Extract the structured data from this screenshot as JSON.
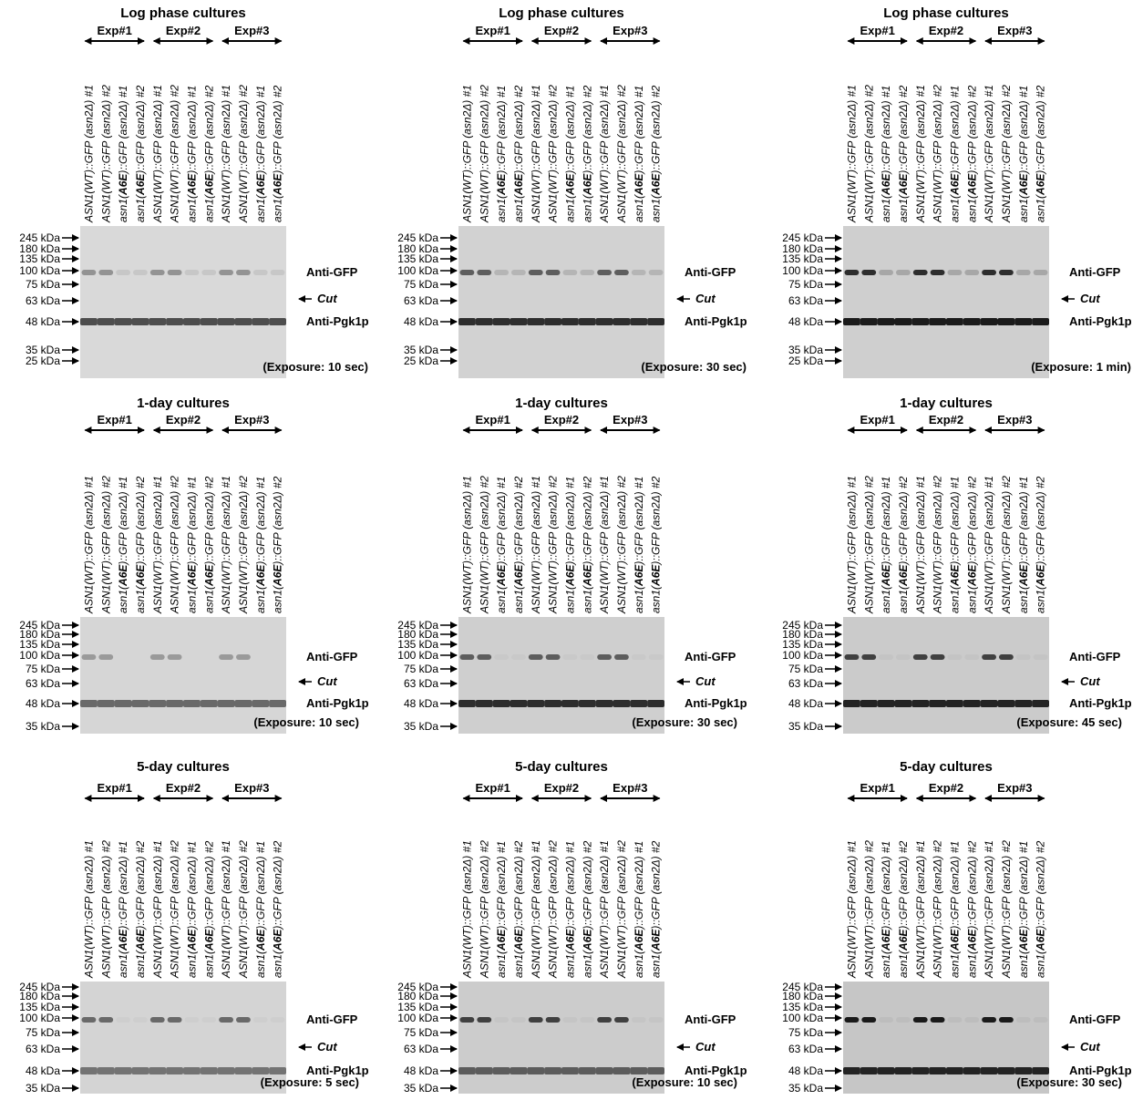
{
  "panels": [
    {
      "title": "Log phase cultures",
      "markers": [
        "245 kDa",
        "180 kDa",
        "135 kDa",
        "100 kDa",
        "75 kDa",
        "63 kDa",
        "48 kDa",
        "35 kDa",
        "25 kDa"
      ],
      "exposure": "(Exposure: 10 sec)"
    },
    {
      "title": "Log phase cultures",
      "markers": [
        "245 kDa",
        "180 kDa",
        "135 kDa",
        "100 kDa",
        "75 kDa",
        "63 kDa",
        "48 kDa",
        "35 kDa",
        "25 kDa"
      ],
      "exposure": "(Exposure: 30 sec)"
    },
    {
      "title": "Log phase cultures",
      "markers": [
        "245 kDa",
        "180 kDa",
        "135 kDa",
        "100 kDa",
        "75 kDa",
        "63 kDa",
        "48 kDa",
        "35 kDa",
        "25 kDa"
      ],
      "exposure": "(Exposure: 1 min)"
    },
    {
      "title": "1-day cultures",
      "markers": [
        "245 kDa",
        "180 kDa",
        "135 kDa",
        "100 kDa",
        "75 kDa",
        "63 kDa",
        "48 kDa",
        "35 kDa"
      ],
      "exposure": "(Exposure: 10 sec)"
    },
    {
      "title": "1-day cultures",
      "markers": [
        "245 kDa",
        "180 kDa",
        "135 kDa",
        "100 kDa",
        "75 kDa",
        "63 kDa",
        "48 kDa",
        "35 kDa"
      ],
      "exposure": "(Exposure: 30 sec)"
    },
    {
      "title": "1-day cultures",
      "markers": [
        "245 kDa",
        "180 kDa",
        "135 kDa",
        "100 kDa",
        "75 kDa",
        "63 kDa",
        "48 kDa",
        "35 kDa"
      ],
      "exposure": "(Exposure: 45 sec)"
    },
    {
      "title": "5-day cultures",
      "markers": [
        "245 kDa",
        "180 kDa",
        "135 kDa",
        "100 kDa",
        "75 kDa",
        "63 kDa",
        "48 kDa",
        "35 kDa"
      ],
      "exposure": "(Exposure: 5 sec)"
    },
    {
      "title": "5-day cultures",
      "markers": [
        "245 kDa",
        "180 kDa",
        "135 kDa",
        "100 kDa",
        "75 kDa",
        "63 kDa",
        "48 kDa",
        "35 kDa"
      ],
      "exposure": "(Exposure: 10 sec)"
    },
    {
      "title": "5-day cultures",
      "markers": [
        "245 kDa",
        "180 kDa",
        "135 kDa",
        "100 kDa",
        "75 kDa",
        "63 kDa",
        "48 kDa",
        "35 kDa"
      ],
      "exposure": "(Exposure: 30 sec)"
    }
  ],
  "experiments": [
    "Exp#1",
    "Exp#2",
    "Exp#3"
  ],
  "lanes": [
    "ASN1(WT)::GFP (asn2Δ) #1",
    "ASN1(WT)::GFP (asn2Δ) #2",
    "asn1(A6E)::GFP (asn2Δ) #1",
    "asn1(A6E)::GFP (asn2Δ) #2",
    "ASN1(WT)::GFP (asn2Δ) #1",
    "ASN1(WT)::GFP (asn2Δ) #2",
    "asn1(A6E)::GFP (asn2Δ) #1",
    "asn1(A6E)::GFP (asn2Δ) #2",
    "ASN1(WT)::GFP (asn2Δ) #1",
    "ASN1(WT)::GFP (asn2Δ) #2",
    "asn1(A6E)::GFP (asn2Δ) #1",
    "asn1(A6E)::GFP (asn2Δ) #2"
  ],
  "band_labels": {
    "gfp": "Anti-GFP",
    "cut": "Cut",
    "pgk": "Anti-Pgk1p"
  }
}
